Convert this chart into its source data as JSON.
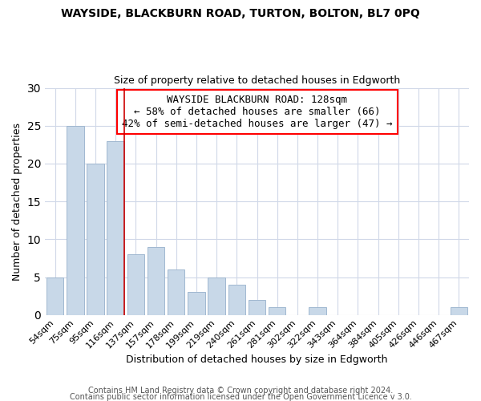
{
  "title": "WAYSIDE, BLACKBURN ROAD, TURTON, BOLTON, BL7 0PQ",
  "subtitle": "Size of property relative to detached houses in Edgworth",
  "xlabel": "Distribution of detached houses by size in Edgworth",
  "ylabel": "Number of detached properties",
  "bar_color": "#c8d8e8",
  "bar_edge_color": "#a0b8d0",
  "categories": [
    "54sqm",
    "75sqm",
    "95sqm",
    "116sqm",
    "137sqm",
    "157sqm",
    "178sqm",
    "199sqm",
    "219sqm",
    "240sqm",
    "261sqm",
    "281sqm",
    "302sqm",
    "322sqm",
    "343sqm",
    "364sqm",
    "384sqm",
    "405sqm",
    "426sqm",
    "446sqm",
    "467sqm"
  ],
  "values": [
    5,
    25,
    20,
    23,
    8,
    9,
    6,
    3,
    5,
    4,
    2,
    1,
    0,
    1,
    0,
    0,
    0,
    0,
    0,
    0,
    1
  ],
  "ylim": [
    0,
    30
  ],
  "yticks": [
    0,
    5,
    10,
    15,
    20,
    25,
    30
  ],
  "annotation_title": "WAYSIDE BLACKBURN ROAD: 128sqm",
  "annotation_line1": "← 58% of detached houses are smaller (66)",
  "annotation_line2": "42% of semi-detached houses are larger (47) →",
  "highlight_bar_index": 3,
  "red_line_color": "#cc0000",
  "footer_line1": "Contains HM Land Registry data © Crown copyright and database right 2024.",
  "footer_line2": "Contains public sector information licensed under the Open Government Licence v 3.0.",
  "background_color": "#ffffff",
  "grid_color": "#d0d8e8",
  "title_fontsize": 10,
  "subtitle_fontsize": 9,
  "annotation_fontsize": 9,
  "ylabel_fontsize": 9,
  "xlabel_fontsize": 9,
  "footer_fontsize": 7
}
